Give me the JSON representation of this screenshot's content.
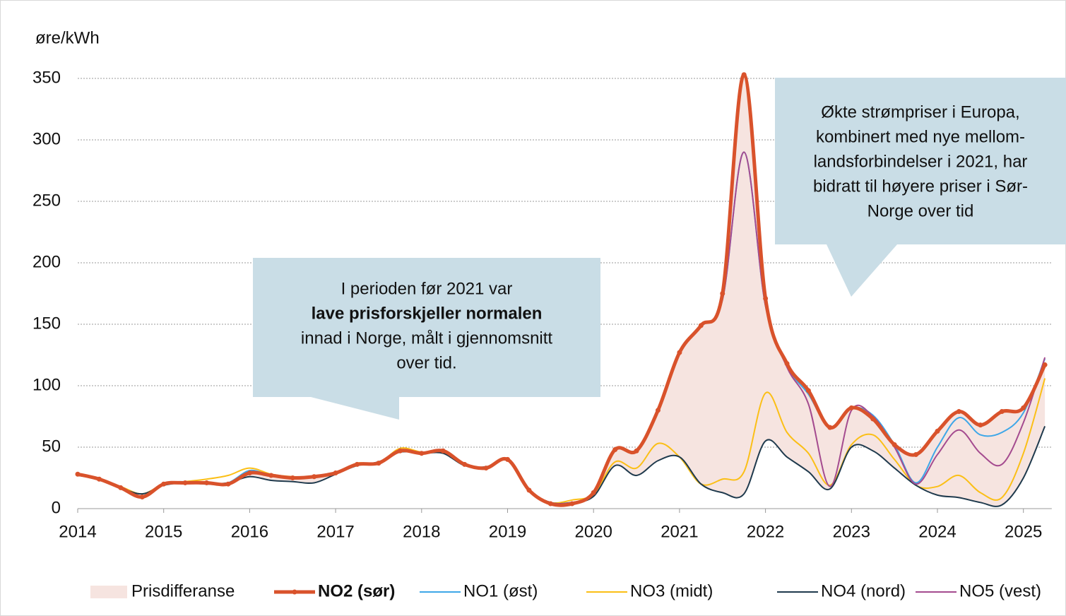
{
  "chart_data": {
    "type": "line",
    "y_label": "øre/kWh",
    "x": [
      2014,
      2014.25,
      2014.5,
      2014.75,
      2015,
      2015.25,
      2015.5,
      2015.75,
      2016,
      2016.25,
      2016.5,
      2016.75,
      2017,
      2017.25,
      2017.5,
      2017.75,
      2018,
      2018.25,
      2018.5,
      2018.75,
      2019,
      2019.25,
      2019.5,
      2019.75,
      2020,
      2020.25,
      2020.5,
      2020.75,
      2021,
      2021.25,
      2021.5,
      2021.75,
      2022,
      2022.25,
      2022.5,
      2022.75,
      2023,
      2023.25,
      2023.5,
      2023.75,
      2024,
      2024.25,
      2024.5,
      2024.75,
      2025,
      2025.25
    ],
    "xlim": [
      2014,
      2025.33
    ],
    "xticks": [
      2014,
      2015,
      2016,
      2017,
      2018,
      2019,
      2020,
      2021,
      2022,
      2023,
      2024,
      2025
    ],
    "ylim": [
      0,
      350
    ],
    "yticks": [
      0,
      50,
      100,
      150,
      200,
      250,
      300,
      350
    ],
    "grid": true,
    "area": {
      "name": "Prisdifferanse",
      "color": "#f6e4e0"
    },
    "series": [
      {
        "name": "NO2 (sør)",
        "color": "#d9522b",
        "width": 5,
        "markers": true,
        "bold": true,
        "values": [
          28,
          24,
          17,
          9.5,
          20,
          21,
          21,
          20,
          29,
          27,
          25,
          26,
          29,
          36,
          37,
          47,
          45,
          47,
          36,
          33,
          40,
          15,
          4,
          4,
          13,
          48,
          47,
          80,
          127,
          149,
          175,
          353,
          171,
          118,
          96,
          66,
          82,
          73,
          52,
          44,
          63,
          79,
          68,
          79,
          82,
          117
        ]
      },
      {
        "name": "NO1 (øst)",
        "color": "#3ea7e8",
        "width": 2,
        "values": [
          28,
          24,
          17,
          10,
          20,
          22,
          21,
          21,
          31,
          27,
          25,
          26,
          29,
          36,
          37,
          47,
          45,
          47,
          36,
          33,
          40,
          15,
          5,
          5,
          12,
          47,
          48,
          80,
          127,
          148,
          170,
          290,
          165,
          116,
          93,
          66,
          82,
          76,
          52,
          21,
          50,
          74,
          60,
          62,
          78,
          122
        ]
      },
      {
        "name": "NO3 (midt)",
        "color": "#fbbf16",
        "width": 2,
        "values": [
          28,
          24,
          18,
          12,
          20,
          22,
          24,
          27,
          33,
          28,
          26,
          26,
          29,
          37,
          37,
          49,
          46,
          46,
          36,
          33,
          40,
          15,
          5,
          7,
          12,
          38,
          33,
          53,
          42,
          20,
          24,
          30,
          94,
          62,
          45,
          19,
          52,
          60,
          40,
          19,
          18,
          27,
          13,
          9,
          45,
          106
        ]
      },
      {
        "name": "NO4 (nord)",
        "color": "#1f3a4d",
        "width": 2,
        "values": [
          27,
          24,
          17,
          12,
          19,
          21,
          20,
          21,
          26,
          23,
          22,
          21,
          28,
          35,
          38,
          46,
          45,
          45,
          35,
          34,
          39,
          15,
          5,
          5,
          10,
          35,
          27,
          39,
          42,
          20,
          13,
          12,
          55,
          42,
          30,
          16,
          50,
          47,
          33,
          19,
          11,
          9,
          5,
          3,
          25,
          67
        ]
      },
      {
        "name": "NO5 (vest)",
        "color": "#a44b8f",
        "width": 2,
        "values": [
          28,
          24,
          17,
          10,
          20,
          21,
          21,
          20,
          30,
          27,
          25,
          26,
          29,
          36,
          37,
          47,
          45,
          47,
          36,
          33,
          40,
          15,
          5,
          5,
          12,
          47,
          48,
          80,
          127,
          148,
          170,
          290,
          165,
          115,
          85,
          18,
          80,
          75,
          50,
          20,
          44,
          64,
          45,
          36,
          70,
          123
        ]
      }
    ],
    "annotations": [
      {
        "lines": [
          "I perioden før 2021 var",
          "lave prisforskjeller normalen",
          "innad i Norge, målt i gjennomsnitt",
          "over tid."
        ],
        "bold_line": 1
      },
      {
        "lines": [
          "Økte strømpriser i Europa,",
          "kombinert med nye mellom-",
          "landsforbindelser i 2021, har",
          "bidratt til høyere priser i Sør-",
          "Norge over tid"
        ]
      }
    ]
  }
}
